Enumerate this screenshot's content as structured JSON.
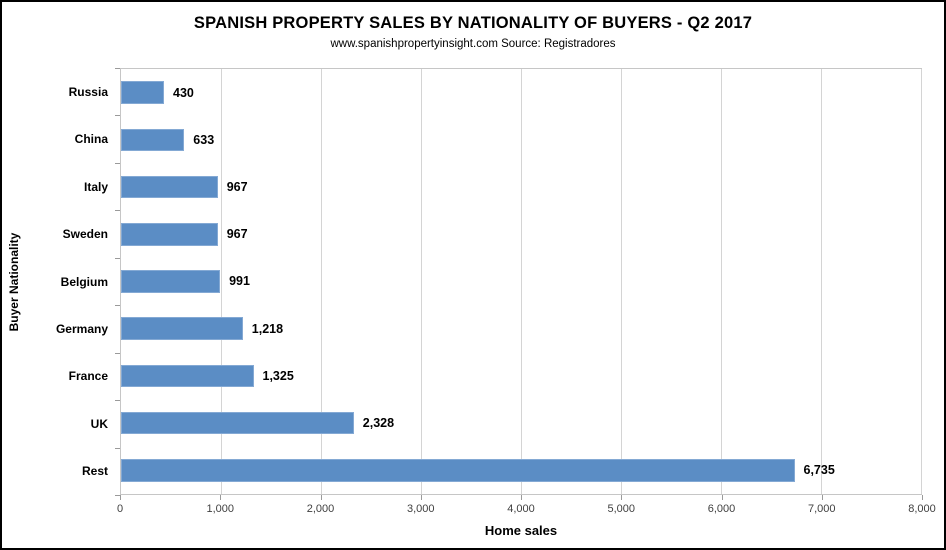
{
  "header": {
    "title": "SPANISH PROPERTY SALES BY NATIONALITY OF BUYERS - Q2 2017",
    "subtitle": "www.spanishpropertyinsight.com Source: Registradores"
  },
  "chart_data": {
    "type": "bar",
    "orientation": "horizontal",
    "title": "SPANISH PROPERTY SALES BY NATIONALITY OF BUYERS - Q2 2017",
    "subtitle": "www.spanishpropertyinsight.com Source: Registradores",
    "xlabel": "Home sales",
    "ylabel": "Buyer Nationality",
    "categories": [
      "Russia",
      "China",
      "Italy",
      "Sweden",
      "Belgium",
      "Germany",
      "France",
      "UK",
      "Rest"
    ],
    "values": [
      430,
      633,
      967,
      967,
      991,
      1218,
      1325,
      2328,
      6735
    ],
    "value_labels": [
      "430",
      "633",
      "967",
      "967",
      "991",
      "1,218",
      "1,325",
      "2,328",
      "6,735"
    ],
    "xlim": [
      0,
      8000
    ],
    "xticks": [
      0,
      1000,
      2000,
      3000,
      4000,
      5000,
      6000,
      7000,
      8000
    ],
    "xtick_labels": [
      "0",
      "1,000",
      "2,000",
      "3,000",
      "4,000",
      "5,000",
      "6,000",
      "7,000",
      "8,000"
    ],
    "grid": true,
    "legend": "none",
    "bar_color": "#5b8dc5",
    "bar_border_color": "#84a9d4",
    "gridline_color": "#d4d4d4"
  }
}
